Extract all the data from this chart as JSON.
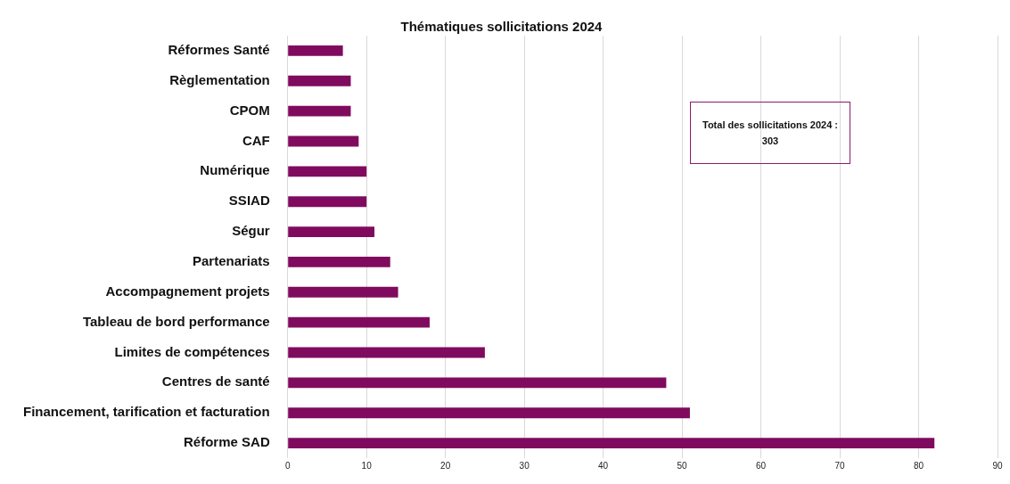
{
  "chart_data": {
    "type": "bar",
    "orientation": "horizontal",
    "title": "Thématiques sollicitations 2024",
    "categories": [
      "Réformes Santé",
      "Règlementation",
      "CPOM",
      "CAF",
      "Numérique",
      "SSIAD",
      "Ségur",
      "Partenariats",
      "Accompagnement projets",
      "Tableau de bord performance",
      "Limites de compétences",
      "Centres de santé",
      "Financement, tarification et facturation",
      "Réforme SAD"
    ],
    "values": [
      7,
      8,
      8,
      9,
      10,
      10,
      11,
      13,
      14,
      18,
      25,
      48,
      51,
      82
    ],
    "color": "#800b5e",
    "xlim": [
      0,
      90
    ],
    "xticks": [
      0,
      10,
      20,
      30,
      40,
      50,
      60,
      70,
      80,
      90
    ],
    "grid": "x",
    "legend": false,
    "annotations": [
      "Total des sollicitations 2024 : 303"
    ]
  }
}
